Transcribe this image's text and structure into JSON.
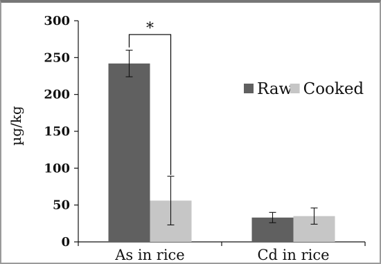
{
  "chart_data": {
    "type": "bar",
    "categories": [
      "As in rice",
      "Cd in rice"
    ],
    "series": [
      {
        "name": "Raw",
        "color": "#606060",
        "values": [
          242,
          33
        ],
        "errors": [
          18,
          7
        ]
      },
      {
        "name": "Cooked",
        "color": "#c6c6c6",
        "values": [
          56,
          35
        ],
        "errors": [
          33,
          11
        ]
      }
    ],
    "ylabel": "µg/kg",
    "xlabel": "",
    "ylim": [
      0,
      300
    ],
    "yticks": [
      0,
      50,
      100,
      150,
      200,
      250,
      300
    ],
    "legend_position": "right",
    "grid": false,
    "annotation": {
      "text": "*",
      "between": [
        "As in rice / Raw",
        "As in rice / Cooked"
      ]
    }
  }
}
